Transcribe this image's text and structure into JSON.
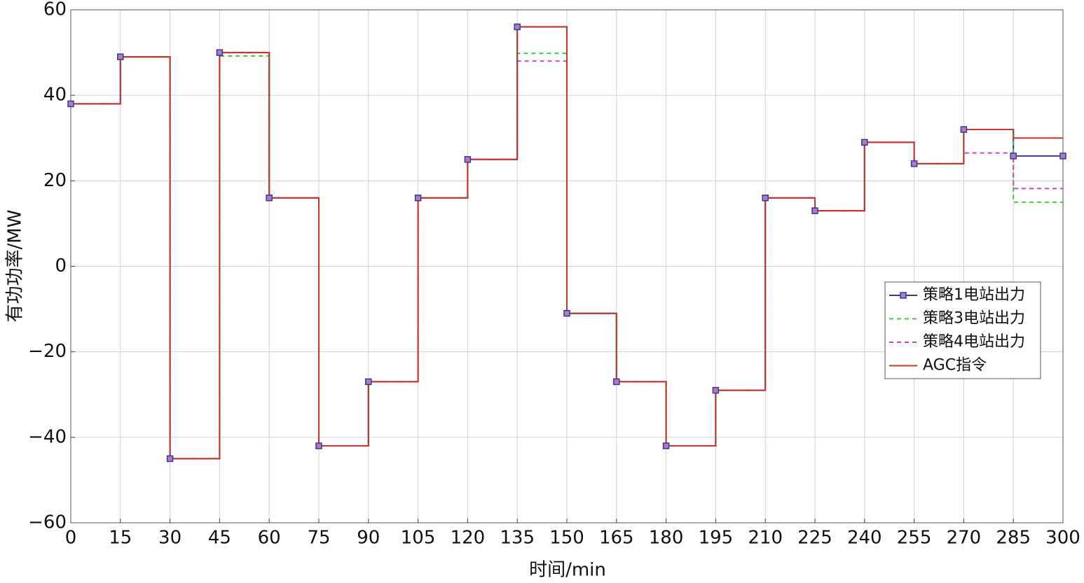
{
  "chart_data": {
    "type": "step",
    "xlabel": "时间/min",
    "ylabel": "有功功率/MW",
    "x": [
      0,
      15,
      30,
      45,
      60,
      75,
      90,
      105,
      120,
      135,
      150,
      165,
      180,
      195,
      210,
      225,
      240,
      255,
      270,
      285,
      300
    ],
    "series": [
      {
        "name": "策略1电站出力",
        "color": "#3c3a8a",
        "marker": "square",
        "marker_color": "#a77cc9",
        "linestyle": "solid",
        "values": [
          38,
          49,
          -45,
          50,
          16,
          -42,
          -27,
          16,
          25,
          56,
          -11,
          -27,
          -42,
          -29,
          16,
          13,
          29,
          24,
          32,
          25.8,
          25.8
        ]
      },
      {
        "name": "策略3电站出力",
        "color": "#3ccc3c",
        "linestyle": "dashed",
        "values": [
          38,
          49,
          -45,
          49.2,
          16,
          -42,
          -27,
          16,
          25,
          49.8,
          -11,
          -27,
          -42,
          -29,
          16,
          13,
          29,
          24,
          32,
          15,
          15
        ]
      },
      {
        "name": "策略4电站出力",
        "color": "#cc44cc",
        "linestyle": "dashed",
        "values": [
          38,
          49,
          -45,
          50,
          16,
          -42,
          -27,
          16,
          25,
          48,
          -11,
          -27,
          -42,
          -29,
          16,
          13,
          29,
          24,
          26.5,
          18.2,
          18.2
        ]
      },
      {
        "name": "AGC指令",
        "color": "#c0392b",
        "linestyle": "solid",
        "values": [
          38,
          49,
          -45,
          50,
          16,
          -42,
          -27,
          16,
          25,
          56,
          -11,
          -27,
          -42,
          -29,
          16,
          13,
          29,
          24,
          32,
          30,
          30
        ]
      }
    ],
    "xlim": [
      0,
      300
    ],
    "xticks": [
      0,
      15,
      30,
      45,
      60,
      75,
      90,
      105,
      120,
      135,
      150,
      165,
      180,
      195,
      210,
      225,
      240,
      255,
      270,
      285,
      300
    ],
    "ylim": [
      -60,
      60
    ],
    "yticks": [
      {
        "value": -60,
        "label": "−60"
      },
      {
        "value": -40,
        "label": "−40"
      },
      {
        "value": -20,
        "label": "−20"
      },
      0,
      20,
      40,
      60
    ],
    "grid": true,
    "legend": "right"
  }
}
